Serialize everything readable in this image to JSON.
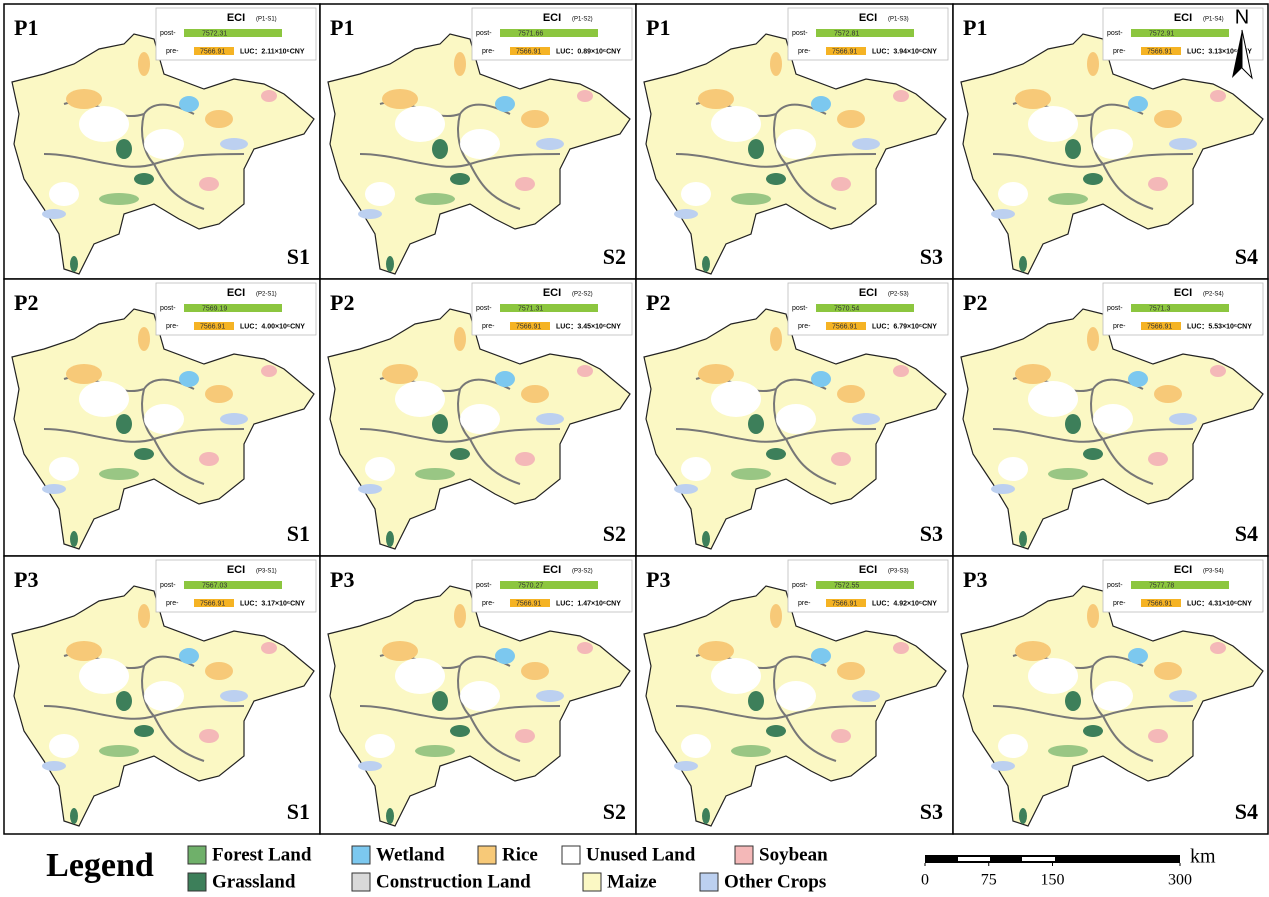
{
  "panels": [
    {
      "period": "P1",
      "scenario": "S1",
      "eci": {
        "title": "ECI",
        "code": "(P1-S1)",
        "post_label": "post-",
        "post": 7572.31,
        "pre_label": "pre-",
        "pre": 7566.91,
        "luc": "LUC：2.11×10⁶CNY"
      }
    },
    {
      "period": "P1",
      "scenario": "S2",
      "eci": {
        "title": "ECI",
        "code": "(P1-S2)",
        "post_label": "post-",
        "post": 7571.66,
        "pre_label": "pre-",
        "pre": 7566.91,
        "luc": "LUC：0.89×10⁶CNY"
      }
    },
    {
      "period": "P1",
      "scenario": "S3",
      "eci": {
        "title": "ECI",
        "code": "(P1-S3)",
        "post_label": "post-",
        "post": 7572.81,
        "pre_label": "pre-",
        "pre": 7566.91,
        "luc": "LUC：3.94×10⁶CNY"
      }
    },
    {
      "period": "P1",
      "scenario": "S4",
      "eci": {
        "title": "ECI",
        "code": "(P1-S4)",
        "post_label": "post-",
        "post": 7572.91,
        "pre_label": "pre-",
        "pre": 7566.91,
        "luc": "LUC：3.13×10⁶CNY"
      }
    },
    {
      "period": "P2",
      "scenario": "S1",
      "eci": {
        "title": "ECI",
        "code": "(P2-S1)",
        "post_label": "post-",
        "post": 7569.19,
        "pre_label": "pre-",
        "pre": 7566.91,
        "luc": "LUC：4.00×10⁶CNY"
      }
    },
    {
      "period": "P2",
      "scenario": "S2",
      "eci": {
        "title": "ECI",
        "code": "(P2-S2)",
        "post_label": "post-",
        "post": 7571.31,
        "pre_label": "pre-",
        "pre": 7566.91,
        "luc": "LUC：3.45×10⁶CNY"
      }
    },
    {
      "period": "P2",
      "scenario": "S3",
      "eci": {
        "title": "ECI",
        "code": "(P2-S3)",
        "post_label": "post-",
        "post": 7570.54,
        "pre_label": "pre-",
        "pre": 7566.91,
        "luc": "LUC：6.79×10⁶CNY"
      }
    },
    {
      "period": "P2",
      "scenario": "S4",
      "eci": {
        "title": "ECI",
        "code": "(P2-S4)",
        "post_label": "post-",
        "post": 7571.3,
        "pre_label": "pre-",
        "pre": 7566.91,
        "luc": "LUC：5.53×10⁶CNY"
      }
    },
    {
      "period": "P3",
      "scenario": "S1",
      "eci": {
        "title": "ECI",
        "code": "(P3-S1)",
        "post_label": "post-",
        "post": 7567.03,
        "pre_label": "pre-",
        "pre": 7566.91,
        "luc": "LUC：3.17×10⁶CNY"
      }
    },
    {
      "period": "P3",
      "scenario": "S2",
      "eci": {
        "title": "ECI",
        "code": "(P3-S2)",
        "post_label": "post-",
        "post": 7570.27,
        "pre_label": "pre-",
        "pre": 7566.91,
        "luc": "LUC：1.47×10⁶CNY"
      }
    },
    {
      "period": "P3",
      "scenario": "S3",
      "eci": {
        "title": "ECI",
        "code": "(P3-S3)",
        "post_label": "post-",
        "post": 7572.55,
        "pre_label": "pre-",
        "pre": 7566.91,
        "luc": "LUC：4.92×10⁶CNY"
      }
    },
    {
      "period": "P3",
      "scenario": "S4",
      "eci": {
        "title": "ECI",
        "code": "(P3-S4)",
        "post_label": "post-",
        "post": 7577.78,
        "pre_label": "pre-",
        "pre": 7566.91,
        "luc": "LUC：4.31×10⁶CNY"
      }
    }
  ],
  "north": "N",
  "legend": {
    "title": "Legend",
    "items": [
      {
        "label": "Forest Land",
        "color": "#6fb06a"
      },
      {
        "label": "Wetland",
        "color": "#7cc8ef"
      },
      {
        "label": "Rice",
        "color": "#f7c978"
      },
      {
        "label": "Unused Land",
        "color": "#ffffff"
      },
      {
        "label": "Soybean",
        "color": "#f4b8b8"
      },
      {
        "label": "Grassland",
        "color": "#3d7f5a"
      },
      {
        "label": "Construction Land",
        "color": "#d9d9d9"
      },
      {
        "label": "Maize",
        "color": "#fbf8c4"
      },
      {
        "label": "Other Crops",
        "color": "#bcd0f0"
      }
    ]
  },
  "scale": {
    "unit": "km",
    "ticks": [
      0,
      75,
      150,
      300
    ]
  }
}
